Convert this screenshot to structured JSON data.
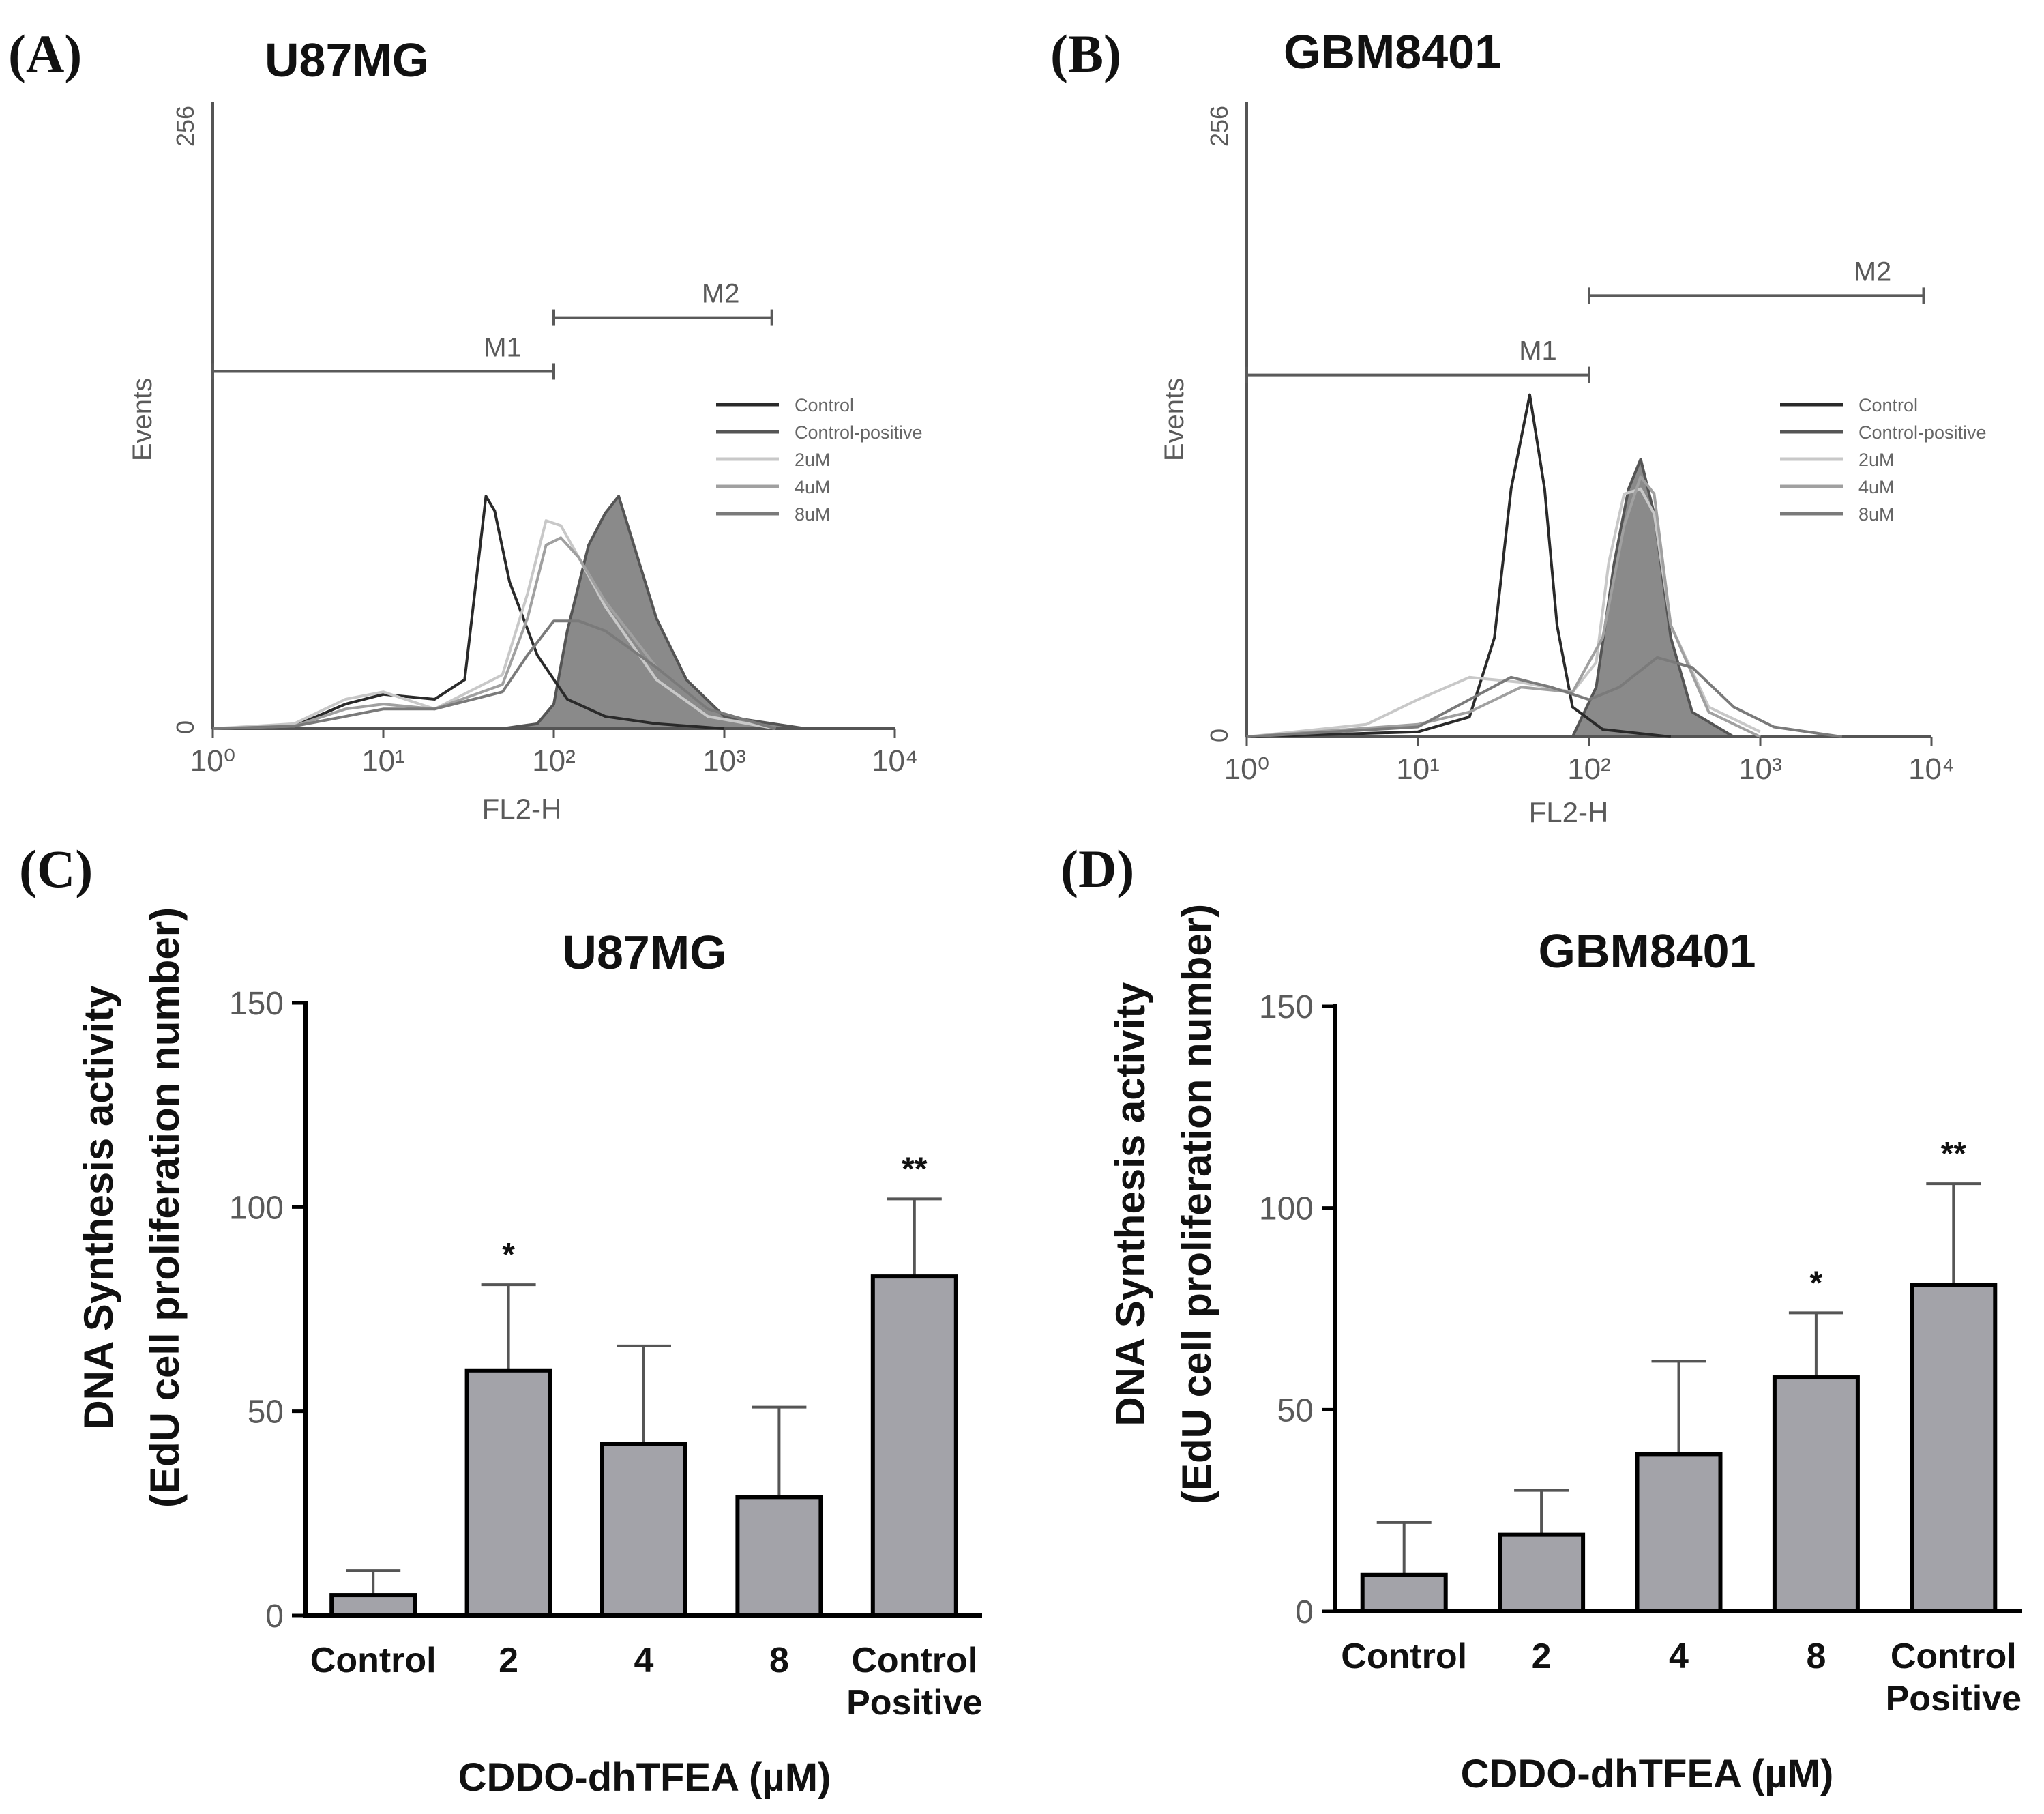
{
  "chart_data": [
    {
      "panel": "(A)",
      "type": "line",
      "title": "U87MG",
      "xlabel": "FL2-H",
      "ylabel": "Events",
      "xscale": "log",
      "xlim": [
        1,
        10000
      ],
      "ylim": [
        0,
        256
      ],
      "x_tick_labels": [
        "10⁰",
        "10¹",
        "10²",
        "10³",
        "10⁴"
      ],
      "y_tick_labels": [
        "0",
        "256"
      ],
      "markers": [
        {
          "label": "M1",
          "x_start": 1,
          "x_end": 100,
          "y": 146
        },
        {
          "label": "M2",
          "x_start": 100,
          "x_end": 1900,
          "y": 168
        }
      ],
      "legend": {
        "position": "right",
        "entries": [
          {
            "name": "Control",
            "color": "#2a2a2a"
          },
          {
            "name": "Control-positive",
            "color": "#555555"
          },
          {
            "name": "2uM",
            "color": "#c8c8c8"
          },
          {
            "name": "4uM",
            "color": "#a0a0a0"
          },
          {
            "name": "8uM",
            "color": "#7a7a7a"
          }
        ]
      },
      "series": [
        {
          "name": "Control",
          "color": "#2a2a2a",
          "filled": false,
          "points": [
            [
              1,
              0
            ],
            [
              3,
              1
            ],
            [
              6,
              10
            ],
            [
              10,
              14
            ],
            [
              20,
              12
            ],
            [
              30,
              20
            ],
            [
              35,
              60
            ],
            [
              40,
              95
            ],
            [
              45,
              89
            ],
            [
              55,
              60
            ],
            [
              80,
              30
            ],
            [
              120,
              12
            ],
            [
              200,
              5
            ],
            [
              400,
              2
            ],
            [
              1000,
              0
            ]
          ]
        },
        {
          "name": "Control-positive",
          "color": "#555555",
          "filled": true,
          "points": [
            [
              1,
              0
            ],
            [
              50,
              0
            ],
            [
              80,
              2
            ],
            [
              100,
              10
            ],
            [
              120,
              40
            ],
            [
              160,
              75
            ],
            [
              200,
              88
            ],
            [
              240,
              95
            ],
            [
              280,
              80
            ],
            [
              400,
              45
            ],
            [
              600,
              20
            ],
            [
              1000,
              5
            ],
            [
              3000,
              0
            ]
          ]
        },
        {
          "name": "2uM",
          "color": "#c8c8c8",
          "filled": false,
          "points": [
            [
              1,
              0
            ],
            [
              3,
              2
            ],
            [
              6,
              12
            ],
            [
              10,
              15
            ],
            [
              20,
              8
            ],
            [
              50,
              22
            ],
            [
              70,
              55
            ],
            [
              90,
              85
            ],
            [
              110,
              83
            ],
            [
              140,
              70
            ],
            [
              200,
              50
            ],
            [
              400,
              20
            ],
            [
              800,
              5
            ],
            [
              2000,
              0
            ]
          ]
        },
        {
          "name": "4uM",
          "color": "#a0a0a0",
          "filled": false,
          "points": [
            [
              1,
              0
            ],
            [
              3,
              1
            ],
            [
              6,
              8
            ],
            [
              10,
              10
            ],
            [
              20,
              8
            ],
            [
              50,
              18
            ],
            [
              70,
              45
            ],
            [
              90,
              75
            ],
            [
              110,
              78
            ],
            [
              140,
              70
            ],
            [
              200,
              52
            ],
            [
              400,
              25
            ],
            [
              800,
              8
            ],
            [
              2000,
              0
            ]
          ]
        },
        {
          "name": "8uM",
          "color": "#7a7a7a",
          "filled": false,
          "points": [
            [
              1,
              0
            ],
            [
              3,
              1
            ],
            [
              6,
              5
            ],
            [
              10,
              8
            ],
            [
              20,
              8
            ],
            [
              50,
              15
            ],
            [
              70,
              30
            ],
            [
              100,
              44
            ],
            [
              140,
              44
            ],
            [
              200,
              40
            ],
            [
              400,
              25
            ],
            [
              800,
              8
            ],
            [
              2000,
              0
            ]
          ]
        }
      ]
    },
    {
      "panel": "(B)",
      "type": "line",
      "title": "GBM8401",
      "xlabel": "FL2-H",
      "ylabel": "Events",
      "xscale": "log",
      "xlim": [
        1,
        10000
      ],
      "ylim": [
        0,
        256
      ],
      "x_tick_labels": [
        "10⁰",
        "10¹",
        "10²",
        "10³",
        "10⁴"
      ],
      "y_tick_labels": [
        "0",
        "256"
      ],
      "markers": [
        {
          "label": "M1",
          "x_start": 1,
          "x_end": 100,
          "y": 146
        },
        {
          "label": "M2",
          "x_start": 100,
          "x_end": 9000,
          "y": 178
        }
      ],
      "legend": {
        "position": "right",
        "entries": [
          {
            "name": "Control",
            "color": "#2a2a2a"
          },
          {
            "name": "Control-positive",
            "color": "#555555"
          },
          {
            "name": "2uM",
            "color": "#c8c8c8"
          },
          {
            "name": "4uM",
            "color": "#a0a0a0"
          },
          {
            "name": "8uM",
            "color": "#7a7a7a"
          }
        ]
      },
      "series": [
        {
          "name": "Control",
          "color": "#2a2a2a",
          "filled": false,
          "points": [
            [
              1,
              0
            ],
            [
              10,
              2
            ],
            [
              20,
              8
            ],
            [
              28,
              40
            ],
            [
              35,
              100
            ],
            [
              45,
              138
            ],
            [
              55,
              100
            ],
            [
              65,
              45
            ],
            [
              80,
              12
            ],
            [
              120,
              3
            ],
            [
              300,
              0
            ]
          ]
        },
        {
          "name": "Control-positive",
          "color": "#555555",
          "filled": true,
          "points": [
            [
              1,
              0
            ],
            [
              80,
              0
            ],
            [
              110,
              20
            ],
            [
              140,
              70
            ],
            [
              170,
              100
            ],
            [
              200,
              112
            ],
            [
              240,
              90
            ],
            [
              300,
              40
            ],
            [
              400,
              10
            ],
            [
              700,
              0
            ]
          ]
        },
        {
          "name": "2uM",
          "color": "#c8c8c8",
          "filled": false,
          "points": [
            [
              1,
              0
            ],
            [
              5,
              5
            ],
            [
              10,
              15
            ],
            [
              20,
              24
            ],
            [
              40,
              22
            ],
            [
              80,
              18
            ],
            [
              110,
              30
            ],
            [
              130,
              70
            ],
            [
              160,
              98
            ],
            [
              200,
              100
            ],
            [
              240,
              90
            ],
            [
              300,
              45
            ],
            [
              500,
              12
            ],
            [
              1000,
              2
            ]
          ]
        },
        {
          "name": "4uM",
          "color": "#a0a0a0",
          "filled": false,
          "points": [
            [
              1,
              0
            ],
            [
              10,
              5
            ],
            [
              20,
              10
            ],
            [
              40,
              20
            ],
            [
              80,
              18
            ],
            [
              120,
              40
            ],
            [
              160,
              85
            ],
            [
              200,
              105
            ],
            [
              240,
              98
            ],
            [
              300,
              45
            ],
            [
              500,
              10
            ],
            [
              1000,
              0
            ]
          ]
        },
        {
          "name": "8uM",
          "color": "#7a7a7a",
          "filled": false,
          "points": [
            [
              1,
              0
            ],
            [
              10,
              4
            ],
            [
              20,
              15
            ],
            [
              35,
              24
            ],
            [
              60,
              20
            ],
            [
              100,
              15
            ],
            [
              150,
              20
            ],
            [
              250,
              32
            ],
            [
              400,
              28
            ],
            [
              700,
              12
            ],
            [
              1200,
              4
            ],
            [
              3000,
              0
            ]
          ]
        }
      ]
    },
    {
      "panel": "(C)",
      "type": "bar",
      "title": "U87MG",
      "xlabel": "CDDO-dhTFEA (µM)",
      "ylabel_line1": "DNA Synthesis activity",
      "ylabel_line2": "(EdU cell proliferation number)",
      "ylim": [
        0,
        150
      ],
      "yticks": [
        0,
        50,
        100,
        150
      ],
      "y_tick_labels": [
        "0",
        "50",
        "100",
        "150"
      ],
      "categories": [
        "Control",
        "2",
        "4",
        "8",
        "Control Positive"
      ],
      "category_lines": [
        [
          "Control"
        ],
        [
          "2"
        ],
        [
          "4"
        ],
        [
          "8"
        ],
        [
          "Control",
          "Positive"
        ]
      ],
      "values": [
        5,
        60,
        42,
        29,
        83
      ],
      "errors": [
        6,
        21,
        24,
        22,
        19
      ],
      "significance": [
        "",
        "*",
        "",
        "",
        "**"
      ]
    },
    {
      "panel": "(D)",
      "type": "bar",
      "title": "GBM8401",
      "xlabel": "CDDO-dhTFEA (µM)",
      "ylabel_line1": "DNA Synthesis activity",
      "ylabel_line2": "(EdU cell proliferation number)",
      "ylim": [
        0,
        150
      ],
      "yticks": [
        0,
        50,
        100,
        150
      ],
      "y_tick_labels": [
        "0",
        "50",
        "100",
        "150"
      ],
      "categories": [
        "Control",
        "2",
        "4",
        "8",
        "Control Positive"
      ],
      "category_lines": [
        [
          "Control"
        ],
        [
          "2"
        ],
        [
          "4"
        ],
        [
          "8"
        ],
        [
          "Control",
          "Positive"
        ]
      ],
      "values": [
        9,
        19,
        39,
        58,
        81
      ],
      "errors": [
        13,
        11,
        23,
        16,
        25
      ],
      "significance": [
        "",
        "",
        "",
        "*",
        "**"
      ]
    }
  ]
}
